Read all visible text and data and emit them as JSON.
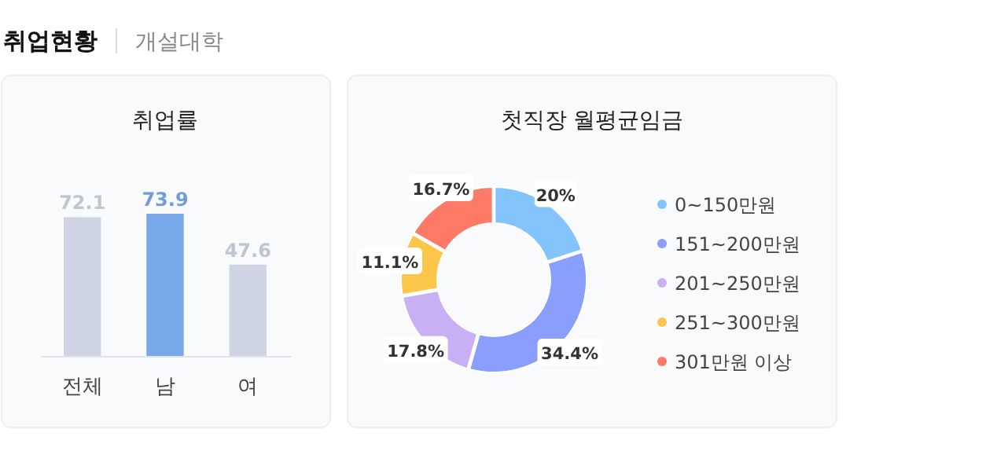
{
  "chart_data": [
    {
      "type": "other",
      "annotations": [
        "취업현황",
        "개설대학"
      ]
    },
    {
      "type": "bar",
      "title": "취업률",
      "categories": [
        "전체",
        "남",
        "여"
      ],
      "values": [
        72.1,
        73.9,
        47.6
      ],
      "colors": [
        "#cfd4e3",
        "#78a7ea",
        "#cfd4e3"
      ],
      "data_labels": true
    },
    {
      "type": "donut",
      "title": "첫직장 월평균임금",
      "categories": [
        "0~150만원",
        "151~200만원",
        "201~250만원",
        "251~300만원",
        "301만원 이상"
      ],
      "values": [
        20,
        34.4,
        17.8,
        11.1,
        16.7
      ],
      "colors": [
        "#82c4fb",
        "#8a9efb",
        "#c9b0f5",
        "#fcc64a",
        "#fd7b66"
      ],
      "value_labels": [
        "20%",
        "34.4%",
        "17.8%",
        "11.1%",
        "16.7%"
      ],
      "legend": "right"
    }
  ]
}
